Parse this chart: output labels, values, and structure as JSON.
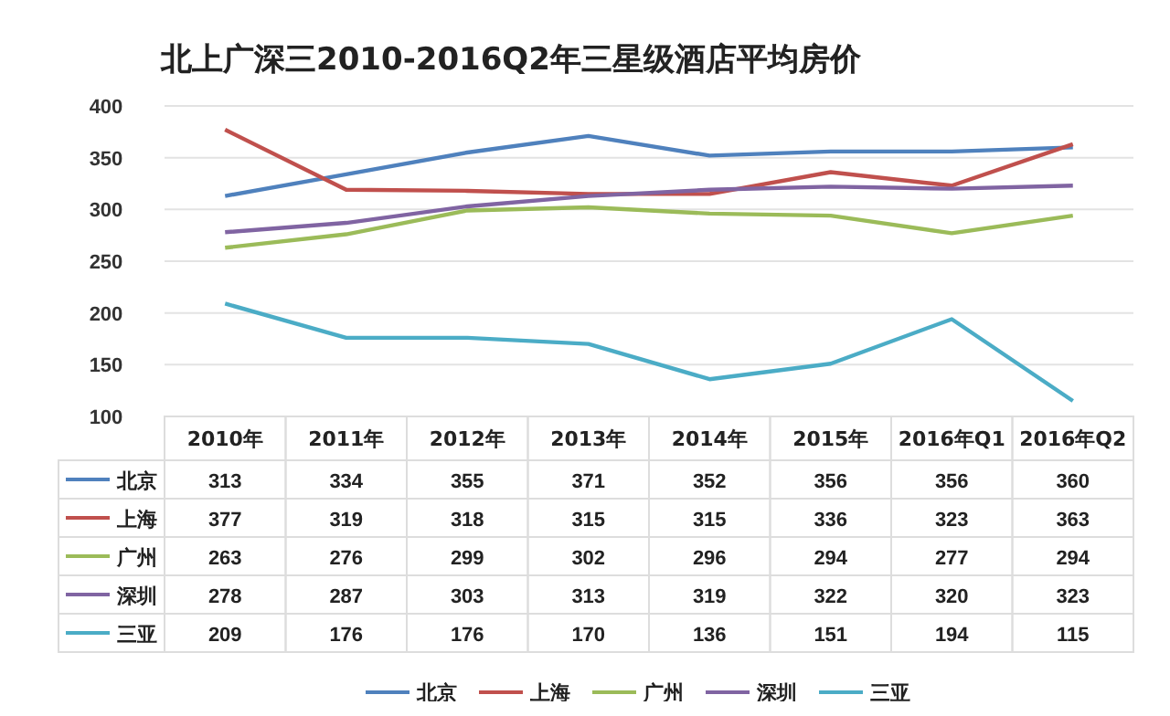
{
  "chart_data": {
    "type": "line",
    "title": "北上广深三2010-2016Q2年三星级酒店平均房价",
    "categories": [
      "2010年",
      "2011年",
      "2012年",
      "2013年",
      "2014年",
      "2015年",
      "2016年Q1",
      "2016年Q2"
    ],
    "series": [
      {
        "name": "北京",
        "color": "#4f81bd",
        "values": [
          313,
          334,
          355,
          371,
          352,
          356,
          356,
          360
        ]
      },
      {
        "name": "上海",
        "color": "#c0504d",
        "values": [
          377,
          319,
          318,
          315,
          315,
          336,
          323,
          363
        ]
      },
      {
        "name": "广州",
        "color": "#9bbb59",
        "values": [
          263,
          276,
          299,
          302,
          296,
          294,
          277,
          294
        ]
      },
      {
        "name": "深圳",
        "color": "#8064a2",
        "values": [
          278,
          287,
          303,
          313,
          319,
          322,
          320,
          323
        ]
      },
      {
        "name": "三亚",
        "color": "#4bacc6",
        "values": [
          209,
          176,
          176,
          170,
          136,
          151,
          194,
          115
        ]
      }
    ],
    "ylim": [
      100,
      400
    ],
    "yticks": [
      100,
      150,
      200,
      250,
      300,
      350,
      400
    ],
    "grid": "y",
    "legend": "bottom",
    "data_labels": true,
    "marker": "none",
    "line_style": "solid"
  }
}
